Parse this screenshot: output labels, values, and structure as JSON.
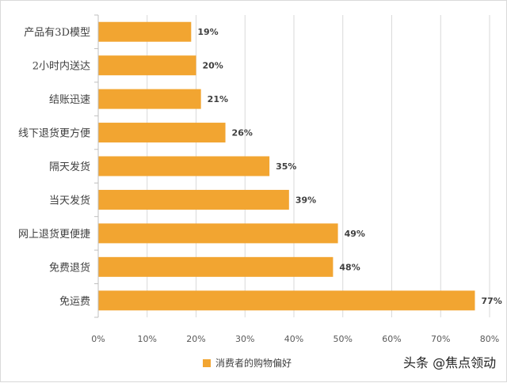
{
  "chart_data": {
    "type": "bar",
    "orientation": "horizontal",
    "categories": [
      "产品有3D模型",
      "2小时内送达",
      "结账迅速",
      "线下退货更方便",
      "隔天发货",
      "当天发货",
      "网上退货更便捷",
      "免费退货",
      "免运费"
    ],
    "series": [
      {
        "name": "消费者的购物偏好",
        "values": [
          19,
          20,
          21,
          26,
          35,
          39,
          49,
          48,
          77
        ],
        "labels": [
          "19%",
          "20%",
          "21%",
          "26%",
          "35%",
          "39%",
          "49%",
          "48%",
          "77%"
        ],
        "color": "#F2A531"
      }
    ],
    "xlim": [
      0,
      80
    ],
    "x_ticks": [
      0,
      10,
      20,
      30,
      40,
      50,
      60,
      70,
      80
    ],
    "x_tick_labels": [
      "0%",
      "10%",
      "20%",
      "30%",
      "40%",
      "50%",
      "60%",
      "70%",
      "80%"
    ],
    "grid": true,
    "legend_position": "bottom",
    "title": "",
    "xlabel": "",
    "ylabel": ""
  },
  "watermark": {
    "text": "头条 @焦点领动"
  }
}
